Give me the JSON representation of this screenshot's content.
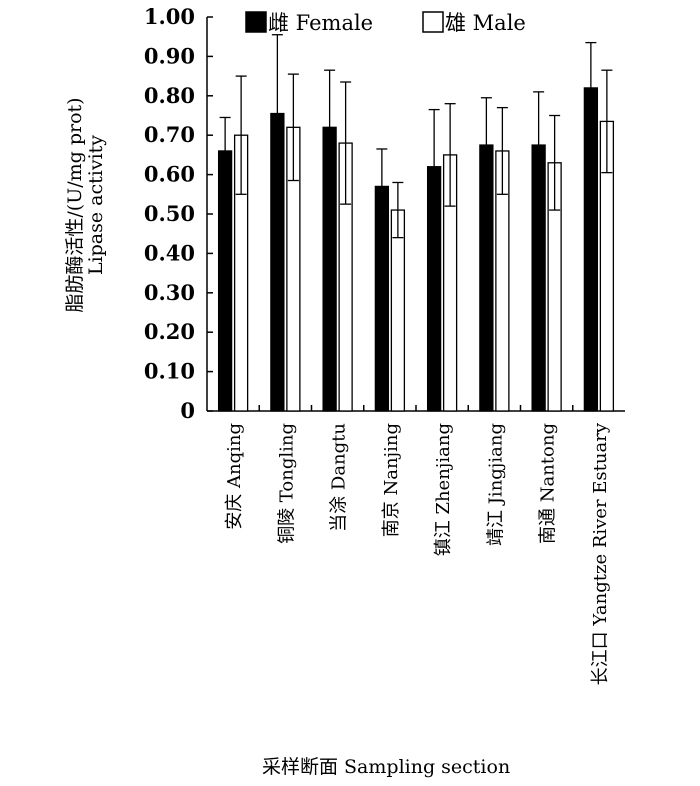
{
  "chart_data": {
    "type": "bar",
    "title": "",
    "xlabel": "采样断面 Sampling section",
    "ylabel_line1": "脂肪酶活性/(U/mg prot)",
    "ylabel_line2": "Lipase activity",
    "ylim": [
      0,
      1.0
    ],
    "ytick_labels": [
      "0",
      "0.10",
      "0.20",
      "0.30",
      "0.40",
      "0.50",
      "0.60",
      "0.70",
      "0.80",
      "0.90",
      "1.00"
    ],
    "categories": [
      "安庆 Anqing",
      "铜陵 Tongling",
      "当涂 Dangtu",
      "南京 Nanjing",
      "镇江 Zhenjiang",
      "靖江 Jingjiang",
      "南通 Nantong",
      "长江口 Yangtze River Estuary"
    ],
    "series": [
      {
        "name": "雌 Female",
        "color": "#000000",
        "values": [
          0.66,
          0.755,
          0.72,
          0.57,
          0.62,
          0.675,
          0.675,
          0.82
        ],
        "errors": [
          0.085,
          0.2,
          0.145,
          0.095,
          0.145,
          0.12,
          0.135,
          0.115
        ]
      },
      {
        "name": "雄 Male",
        "color": "#ffffff",
        "values": [
          0.7,
          0.72,
          0.68,
          0.51,
          0.65,
          0.66,
          0.63,
          0.735
        ],
        "errors": [
          0.15,
          0.135,
          0.155,
          0.07,
          0.13,
          0.11,
          0.12,
          0.13
        ]
      }
    ],
    "legend_position": "top"
  }
}
